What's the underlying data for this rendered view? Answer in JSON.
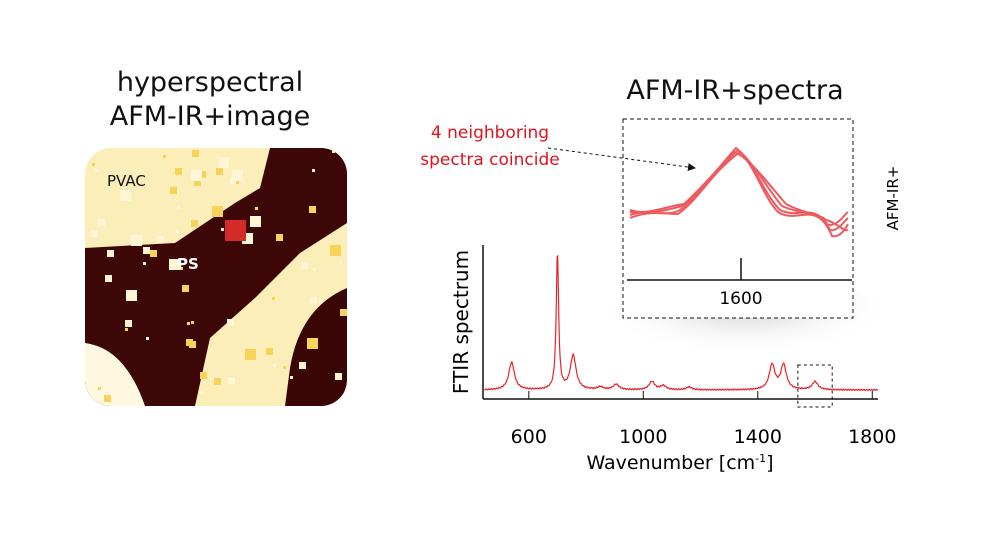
{
  "left_panel": {
    "title_line1": "hyperspectral",
    "title_line2": "AFM-IR+image",
    "label_pvac": "PVAC",
    "label_ps": "PS",
    "colors": {
      "bright": "#fdf3c8",
      "dark": "#3a0606",
      "marker": "#d42a2a"
    }
  },
  "right_panel": {
    "title": "AFM-IR+spectra",
    "annotation_line1": "4 neighboring",
    "annotation_line2": "spectra coincide",
    "annotation_color": "#e0141e",
    "inset": {
      "tick_label": "1600",
      "side_label": "AFM-IR+"
    }
  },
  "chart_data": {
    "type": "line",
    "xlabel": "Wavenumber [cm",
    "xlabel_sup": "-1",
    "xlabel_end": "]",
    "ylabel": "FTIR spectrum",
    "xlim": [
      440,
      1820
    ],
    "xticks": [
      600,
      1000,
      1400,
      1800
    ],
    "xtick_labels": [
      "600",
      "1000",
      "1400",
      "1800"
    ],
    "grid": false,
    "line_color": "#e8242a",
    "peaks": [
      {
        "x": 540,
        "height": 0.2
      },
      {
        "x": 700,
        "height": 1.0
      },
      {
        "x": 755,
        "height": 0.25
      },
      {
        "x": 850,
        "height": 0.02
      },
      {
        "x": 905,
        "height": 0.04
      },
      {
        "x": 1030,
        "height": 0.06
      },
      {
        "x": 1070,
        "height": 0.03
      },
      {
        "x": 1160,
        "height": 0.02
      },
      {
        "x": 1450,
        "height": 0.18
      },
      {
        "x": 1490,
        "height": 0.18
      },
      {
        "x": 1600,
        "height": 0.06
      }
    ],
    "highlight_range": [
      1540,
      1660
    ]
  }
}
